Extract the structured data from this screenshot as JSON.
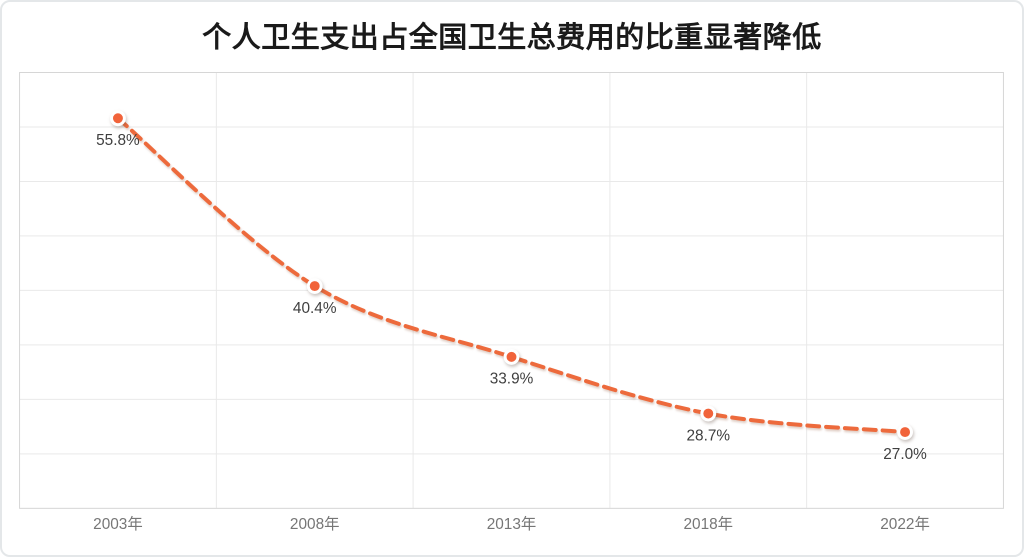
{
  "chart_data": {
    "type": "line",
    "title": "个人卫生支出占全国卫生总费用的比重显著降低",
    "categories": [
      "2003年",
      "2008年",
      "2013年",
      "2018年",
      "2022年"
    ],
    "values": [
      55.8,
      40.4,
      33.9,
      28.7,
      27.0
    ],
    "data_labels": [
      "55.8%",
      "40.4%",
      "33.9%",
      "28.7%",
      "27.0%"
    ],
    "xlabel": "",
    "ylabel": "",
    "ylim": [
      20,
      60
    ],
    "grid_step": 5,
    "grid": "on",
    "legend": "none",
    "line_style": "dashed",
    "smooth": true
  },
  "style": {
    "line_color": "#ED6A3C",
    "marker_fill": "#F1633A",
    "marker_ring": "#FFFFFF",
    "data_label_color": "#3F3F3F",
    "axis_label_color": "#767676",
    "gridline_color": "#E9E9E9",
    "plot_border_color": "#D6D6D6",
    "title_color": "#1A1A1A",
    "background": "#FFFFFF"
  }
}
